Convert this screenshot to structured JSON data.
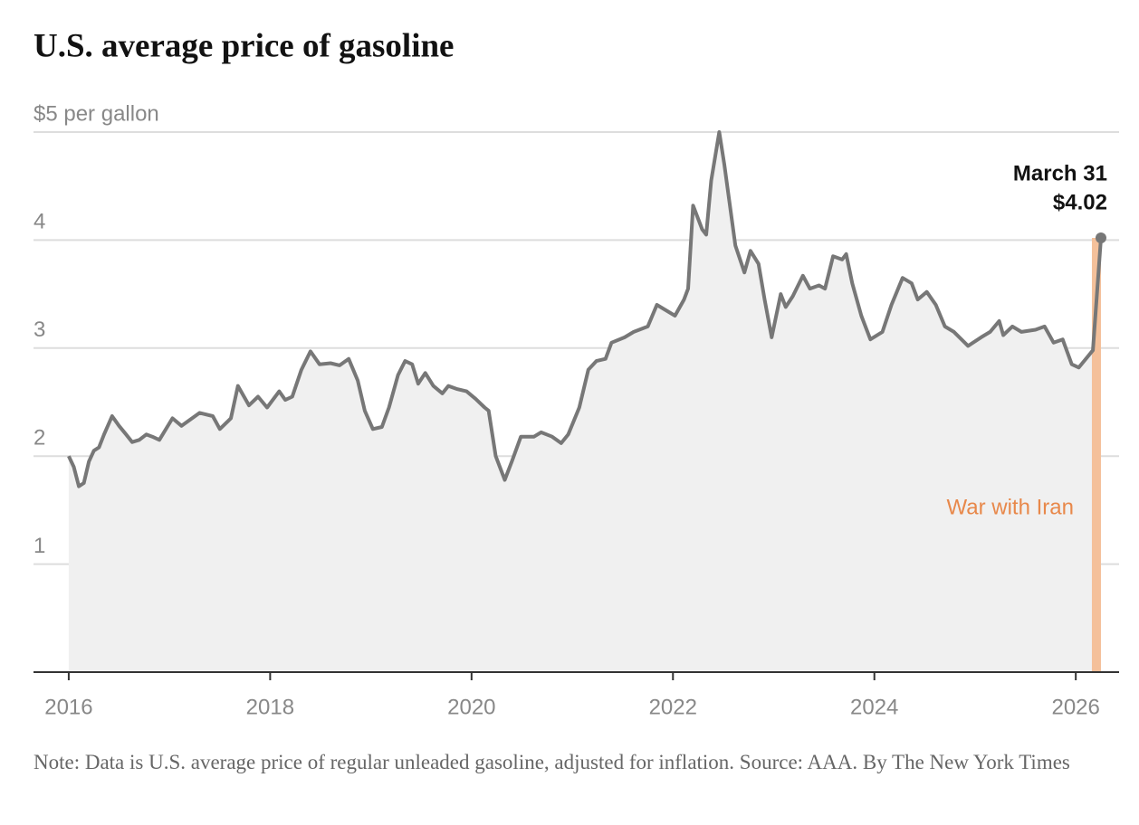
{
  "chart_data": {
    "type": "line",
    "title": "U.S. average price of gasoline",
    "note": "Note: Data is U.S. average price of regular unleaded gasoline, adjusted for inflation.  Source: AAA.  By The New York Times",
    "xlim": [
      2015.65,
      2026.43
    ],
    "xticks": [
      2016,
      2018,
      2020,
      2022,
      2024,
      2026
    ],
    "ylim": [
      0,
      5
    ],
    "yticks": [
      1,
      2,
      3,
      4,
      {
        "value": 5,
        "label": "$5 per gallon"
      }
    ],
    "grid": true,
    "series": [
      {
        "color": "#777777",
        "x": [
          2016.0,
          2016.05,
          2016.1,
          2016.15,
          2016.2,
          2016.25,
          2016.3,
          2016.35,
          2016.43,
          2016.5,
          2016.57,
          2016.63,
          2016.7,
          2016.77,
          2016.83,
          2016.9,
          2017.03,
          2017.12,
          2017.3,
          2017.43,
          2017.5,
          2017.61,
          2017.68,
          2017.79,
          2017.88,
          2017.97,
          2018.09,
          2018.15,
          2018.22,
          2018.31,
          2018.4,
          2018.49,
          2018.6,
          2018.69,
          2018.78,
          2018.87,
          2018.94,
          2019.02,
          2019.11,
          2019.18,
          2019.27,
          2019.34,
          2019.41,
          2019.47,
          2019.54,
          2019.62,
          2019.71,
          2019.77,
          2019.86,
          2019.95,
          2020.04,
          2020.13,
          2020.17,
          2020.24,
          2020.33,
          2020.4,
          2020.49,
          2020.62,
          2020.69,
          2020.8,
          2020.89,
          2020.96,
          2021.07,
          2021.16,
          2021.24,
          2021.33,
          2021.39,
          2021.52,
          2021.61,
          2021.75,
          2021.84,
          2021.93,
          2022.02,
          2022.11,
          2022.15,
          2022.2,
          2022.29,
          2022.33,
          2022.38,
          2022.46,
          2022.51,
          2022.62,
          2022.71,
          2022.77,
          2022.85,
          2022.91,
          2022.98,
          2023.07,
          2023.12,
          2023.19,
          2023.29,
          2023.36,
          2023.45,
          2023.51,
          2023.59,
          2023.68,
          2023.72,
          2023.78,
          2023.87,
          2023.96,
          2024.08,
          2024.17,
          2024.28,
          2024.37,
          2024.43,
          2024.52,
          2024.61,
          2024.7,
          2024.79,
          2024.93,
          2025.06,
          2025.15,
          2025.24,
          2025.28,
          2025.37,
          2025.46,
          2025.6,
          2025.69,
          2025.78,
          2025.87,
          2025.96,
          2026.03,
          2026.1,
          2026.17,
          2026.25
        ],
        "values": [
          2.0,
          1.9,
          1.72,
          1.75,
          1.95,
          2.05,
          2.08,
          2.2,
          2.37,
          2.28,
          2.2,
          2.13,
          2.15,
          2.2,
          2.18,
          2.15,
          2.35,
          2.28,
          2.4,
          2.37,
          2.25,
          2.35,
          2.65,
          2.47,
          2.55,
          2.45,
          2.6,
          2.52,
          2.55,
          2.8,
          2.97,
          2.85,
          2.86,
          2.84,
          2.9,
          2.7,
          2.42,
          2.25,
          2.27,
          2.45,
          2.75,
          2.88,
          2.85,
          2.67,
          2.77,
          2.65,
          2.58,
          2.65,
          2.62,
          2.6,
          2.53,
          2.45,
          2.42,
          2.0,
          1.78,
          1.95,
          2.18,
          2.18,
          2.22,
          2.18,
          2.12,
          2.2,
          2.45,
          2.8,
          2.88,
          2.9,
          3.05,
          3.1,
          3.15,
          3.2,
          3.4,
          3.35,
          3.3,
          3.45,
          3.55,
          4.32,
          4.1,
          4.05,
          4.55,
          5.0,
          4.7,
          3.95,
          3.7,
          3.9,
          3.78,
          3.45,
          3.1,
          3.5,
          3.38,
          3.48,
          3.67,
          3.55,
          3.58,
          3.55,
          3.85,
          3.82,
          3.87,
          3.6,
          3.3,
          3.08,
          3.15,
          3.4,
          3.65,
          3.6,
          3.45,
          3.52,
          3.4,
          3.2,
          3.15,
          3.02,
          3.1,
          3.15,
          3.25,
          3.12,
          3.2,
          3.15,
          3.17,
          3.2,
          3.05,
          3.08,
          2.85,
          2.82,
          2.9,
          2.98,
          4.02
        ]
      }
    ],
    "annotation": {
      "text": "March 31",
      "value_label": "$4.02",
      "x": 2026.25,
      "value": 4.02
    },
    "highlight": {
      "start": 2026.16,
      "end": 2026.25,
      "label": "War with Iran",
      "color": "#f4c09a",
      "label_color": "#e8884a"
    }
  }
}
